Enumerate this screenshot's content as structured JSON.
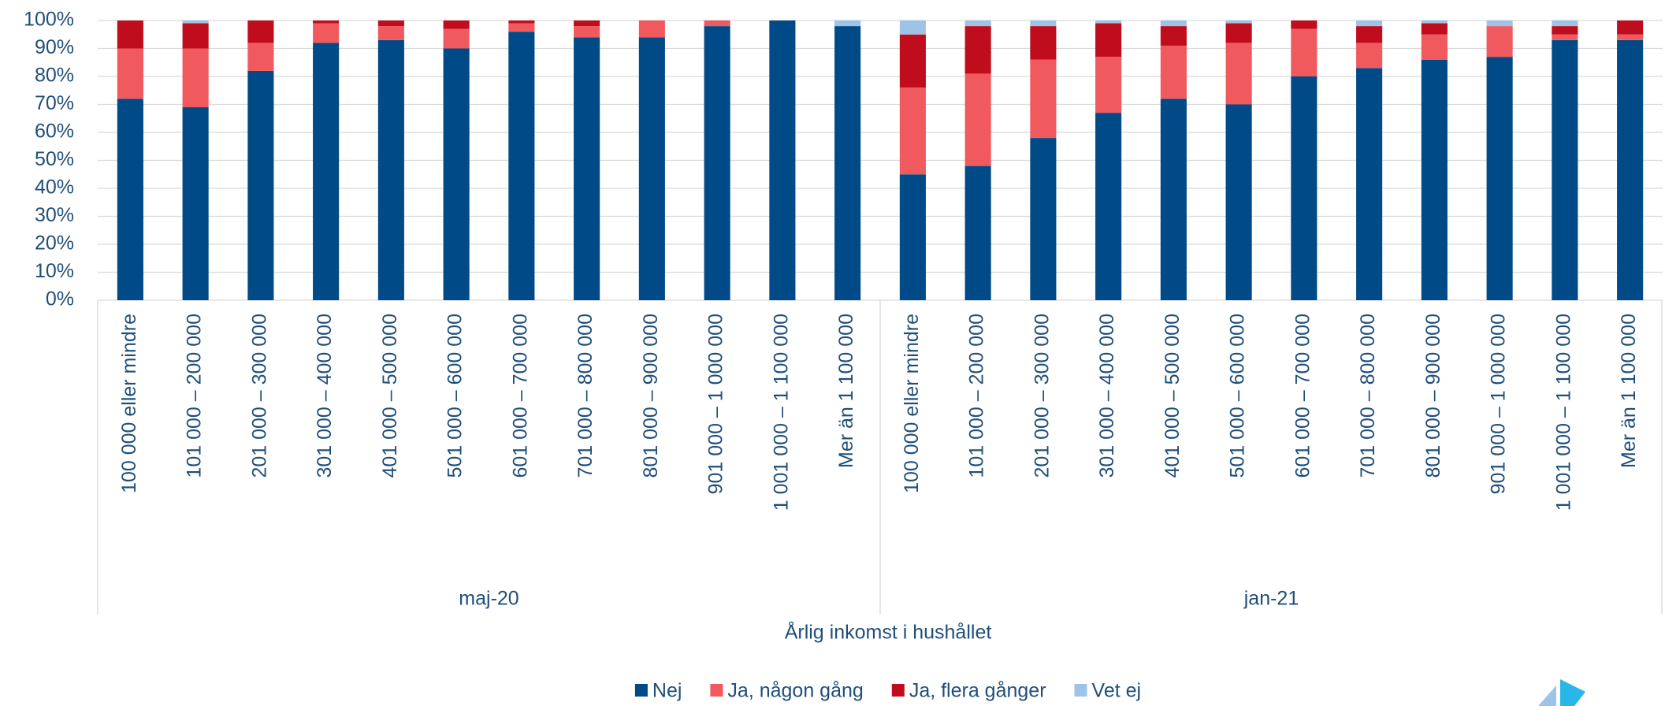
{
  "chart_data": {
    "type": "stacked_bar",
    "categories": [
      "100 000 eller mindre",
      "101 000 – 200 000",
      "201 000 – 300 000",
      "301 000 – 400 000",
      "401 000 – 500 000",
      "501 000 – 600 000",
      "601 000 – 700 000",
      "701 000 – 800 000",
      "801 000 – 900 000",
      "901 000 – 1 000 000",
      "1 001 000 – 1 100 000",
      "Mer än 1 100 000",
      "100 000 eller mindre",
      "101 000 – 200 000",
      "201 000 – 300 000",
      "301 000 – 400 000",
      "401 000 – 500 000",
      "501 000 – 600 000",
      "601 000 – 700 000",
      "701 000 – 800 000",
      "801 000 – 900 000",
      "901 000 – 1 000 000",
      "1 001 000 – 1 100 000",
      "Mer än 1 100 000"
    ],
    "groups": [
      "maj-20",
      "jan-21"
    ],
    "xlabel": "Årlig inkomst i hushållet",
    "series": [
      {
        "name": "Nej",
        "color": "#004a87",
        "values": [
          72,
          69,
          82,
          92,
          93,
          90,
          96,
          94,
          94,
          98,
          100,
          98,
          45,
          48,
          58,
          67,
          72,
          70,
          80,
          83,
          86,
          87,
          93,
          93
        ]
      },
      {
        "name": "Ja, någon gång",
        "color": "#f05a5f",
        "values": [
          18,
          21,
          10,
          7,
          5,
          7,
          3,
          4,
          6,
          2,
          0,
          0,
          31,
          33,
          28,
          20,
          19,
          22,
          17,
          9,
          9,
          11,
          2,
          2
        ]
      },
      {
        "name": "Ja, flera gånger",
        "color": "#c00d1e",
        "values": [
          10,
          9,
          8,
          1,
          2,
          3,
          1,
          2,
          0,
          0,
          0,
          0,
          19,
          17,
          12,
          12,
          7,
          7,
          3,
          6,
          4,
          0,
          3,
          5
        ]
      },
      {
        "name": "Vet ej",
        "color": "#9dc3e6",
        "values": [
          0,
          1,
          0,
          0,
          0,
          0,
          0,
          0,
          0,
          0,
          0,
          2,
          5,
          2,
          2,
          1,
          2,
          1,
          0,
          2,
          1,
          2,
          2,
          0
        ]
      }
    ],
    "ylim": [
      0,
      100
    ],
    "yticks": [
      {
        "value": 0,
        "label": "0%"
      },
      {
        "value": 10,
        "label": "10%"
      },
      {
        "value": 20,
        "label": "20%"
      },
      {
        "value": 30,
        "label": "30%"
      },
      {
        "value": 40,
        "label": "40%"
      },
      {
        "value": 50,
        "label": "50%"
      },
      {
        "value": 60,
        "label": "60%"
      },
      {
        "value": 70,
        "label": "70%"
      },
      {
        "value": 80,
        "label": "80%"
      },
      {
        "value": 90,
        "label": "90%"
      },
      {
        "value": 100,
        "label": "100%"
      }
    ],
    "grid": true,
    "legend": "bottom"
  }
}
